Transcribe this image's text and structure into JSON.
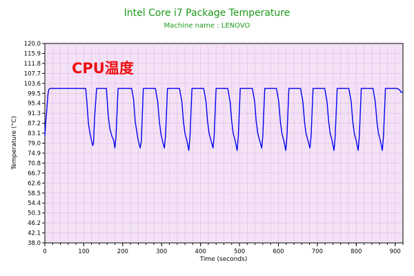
{
  "chart_data": {
    "type": "line",
    "title": "Intel Core i7 Package Temperature",
    "subtitle": "Machine name : LENOVO",
    "xlabel": "Time (seconds)",
    "ylabel": "Temperature (°C)",
    "annotation": "CPU温度",
    "xlim": [
      0,
      920
    ],
    "ylim": [
      38.0,
      120.0
    ],
    "x_ticks": [
      "0",
      "100",
      "200",
      "300",
      "400",
      "500",
      "600",
      "700",
      "800",
      "900"
    ],
    "y_ticks": [
      "120.0",
      "115.9",
      "111.8",
      "107.7",
      "103.6",
      "99.5",
      "95.4",
      "91.3",
      "87.2",
      "83.1",
      "79.0",
      "74.9",
      "70.8",
      "66.7",
      "62.6",
      "58.5",
      "54.4",
      "50.3",
      "46.2",
      "42.1",
      "38.0"
    ],
    "grid": true,
    "legend": "none",
    "colors": {
      "title": "#1a9a1a",
      "subtitle": "#1a9a1a",
      "annotation": "#ee1111",
      "line": "#0000ee",
      "plot_background": "#f3e2f5",
      "grid": "#d28ee0",
      "axes": "#000000"
    },
    "series": [
      {
        "x": [
          0,
          2,
          4,
          6,
          8,
          10,
          13,
          20,
          40,
          60,
          80,
          100,
          105,
          108,
          112,
          116,
          120,
          123,
          125,
          128,
          133,
          138,
          150,
          158,
          160,
          163,
          167,
          172,
          177,
          180,
          183,
          188,
          196,
          210,
          223,
          228,
          232,
          236,
          240,
          245,
          248,
          253,
          258,
          270,
          284,
          290,
          294,
          298,
          302,
          307,
          310,
          315,
          320,
          335,
          346,
          352,
          356,
          360,
          365,
          370,
          373,
          378,
          383,
          398,
          408,
          414,
          418,
          422,
          427,
          432,
          435,
          440,
          445,
          460,
          470,
          476,
          480,
          484,
          489,
          494,
          497,
          502,
          507,
          522,
          533,
          539,
          543,
          547,
          552,
          557,
          560,
          565,
          570,
          585,
          595,
          601,
          605,
          609,
          614,
          619,
          622,
          627,
          632,
          647,
          657,
          663,
          667,
          671,
          676,
          681,
          684,
          689,
          694,
          709,
          719,
          725,
          729,
          733,
          738,
          743,
          746,
          751,
          756,
          771,
          781,
          787,
          791,
          795,
          800,
          805,
          808,
          813,
          818,
          833,
          843,
          849,
          853,
          857,
          862,
          867,
          870,
          875,
          880,
          895,
          905,
          911,
          915,
          920
        ],
        "y": [
          82,
          87,
          91,
          95,
          99,
          101,
          101.5,
          101.5,
          101.5,
          101.5,
          101.5,
          101.5,
          101.5,
          96,
          87,
          83,
          80,
          78,
          79,
          90,
          101.5,
          101.5,
          101.5,
          101.5,
          97,
          90,
          85,
          82,
          80,
          77,
          82,
          101.5,
          101.5,
          101.5,
          101.5,
          97,
          88,
          84,
          80,
          77,
          80,
          101.5,
          101.5,
          101.5,
          101.5,
          96,
          88,
          83,
          80,
          77,
          82,
          101.5,
          101.5,
          101.5,
          101.5,
          96,
          88,
          83,
          80,
          76,
          82,
          101.5,
          101.5,
          101.5,
          101.5,
          96,
          88,
          83,
          80,
          77,
          82,
          101.5,
          101.5,
          101.5,
          101.5,
          96,
          88,
          83,
          80,
          76,
          82,
          101.5,
          101.5,
          101.5,
          101.5,
          96,
          88,
          83,
          80,
          77,
          82,
          101.5,
          101.5,
          101.5,
          101.5,
          96,
          88,
          83,
          80,
          76,
          82,
          101.5,
          101.5,
          101.5,
          101.5,
          96,
          88,
          83,
          80,
          77,
          82,
          101.5,
          101.5,
          101.5,
          101.5,
          96,
          88,
          83,
          80,
          76,
          82,
          101.5,
          101.5,
          101.5,
          101.5,
          96,
          88,
          83,
          80,
          76,
          82,
          101.5,
          101.5,
          101.5,
          101.5,
          96,
          88,
          83,
          80,
          76,
          82,
          101.5,
          101.5,
          101.5,
          101.5,
          101,
          100,
          100
        ]
      }
    ]
  }
}
